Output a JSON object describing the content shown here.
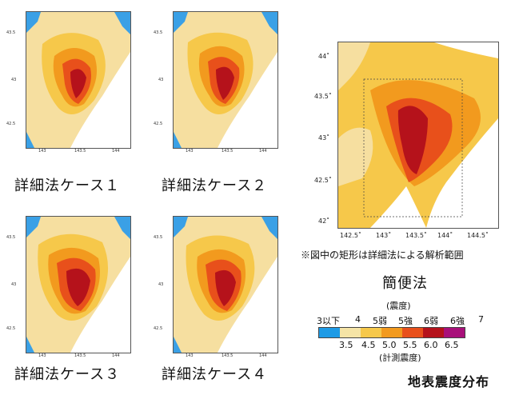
{
  "small_maps": [
    {
      "caption": "詳細法ケース１",
      "y_ticks": [
        "43.5",
        "43",
        "42.5"
      ],
      "x_ticks": [
        "143",
        "143.5",
        "144"
      ]
    },
    {
      "caption": "詳細法ケース２",
      "y_ticks": [
        "43.5",
        "43",
        "42.5"
      ],
      "x_ticks": [
        "143",
        "143.5",
        "144"
      ]
    },
    {
      "caption": "詳細法ケース３",
      "y_ticks": [
        "43.5",
        "43",
        "42.5"
      ],
      "x_ticks": [
        "143",
        "143.5",
        "144"
      ]
    },
    {
      "caption": "詳細法ケース４",
      "y_ticks": [
        "43.5",
        "43",
        "42.5"
      ],
      "x_ticks": [
        "143",
        "143.5",
        "144"
      ]
    }
  ],
  "big_map": {
    "caption": "簡便法",
    "y_ticks": [
      "44˚",
      "43.5˚",
      "43˚",
      "42.5˚",
      "42˚"
    ],
    "x_ticks": [
      "142.5˚",
      "143˚",
      "143.5˚",
      "144˚",
      "144.5˚"
    ],
    "note": "※図中の矩形は詳細法による解析範囲"
  },
  "legend": {
    "intensity_title": "(震度)",
    "classes": [
      "3以下",
      "4",
      "5弱",
      "5強",
      "6弱",
      "6強",
      "7"
    ],
    "values": [
      "3.5",
      "4.5",
      "5.0",
      "5.5",
      "6.0",
      "6.5"
    ],
    "measured_title": "(計測震度)",
    "colors": [
      "#1e9be6",
      "#f5e4a6",
      "#f6c84a",
      "#f29a1e",
      "#e8501b",
      "#b5121b",
      "#a8107a"
    ]
  },
  "figure_title": "地表震度分布"
}
